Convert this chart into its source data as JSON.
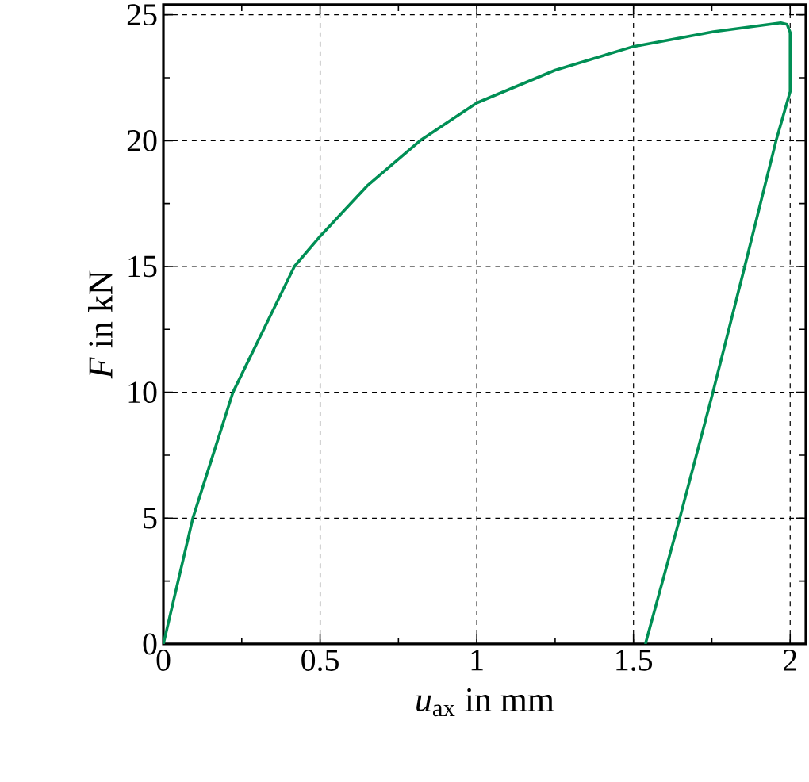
{
  "chart_data": {
    "type": "line",
    "xlabel": "*u*$_{ax}$ in mm",
    "ylabel": "*F* in kN",
    "x": [
      0,
      0.094,
      0.222,
      0.418,
      0.5,
      0.65,
      0.819,
      1.0,
      1.25,
      1.5,
      1.755,
      1.97,
      1.99,
      2.0,
      2.0,
      1.955,
      1.855,
      1.752,
      1.646,
      1.538
    ],
    "values": [
      0,
      5,
      10,
      15,
      16.2,
      18.2,
      20,
      21.5,
      22.8,
      23.74,
      24.33,
      24.68,
      24.62,
      24.3,
      21.95,
      20,
      15,
      9.93,
      4.92,
      0
    ],
    "color": "#008f55",
    "xlim": [
      0,
      2.05
    ],
    "ylim": [
      0,
      25.4
    ],
    "xticks": [
      0,
      0.5,
      1,
      1.5,
      2
    ],
    "yticks": [
      0,
      5,
      10,
      15,
      20,
      25
    ],
    "grid": true
  }
}
